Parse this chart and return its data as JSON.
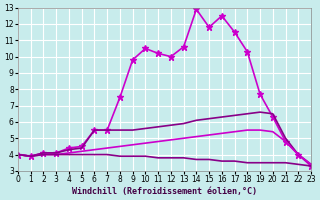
{
  "xlabel": "Windchill (Refroidissement éolien,°C)",
  "ylabel": "",
  "background_color": "#c8ecec",
  "grid_color": "#ffffff",
  "xlim": [
    0,
    23
  ],
  "ylim": [
    3,
    13
  ],
  "xticks": [
    0,
    1,
    2,
    3,
    4,
    5,
    6,
    7,
    8,
    9,
    10,
    11,
    12,
    13,
    14,
    15,
    16,
    17,
    18,
    19,
    20,
    21,
    22,
    23
  ],
  "yticks": [
    3,
    4,
    5,
    6,
    7,
    8,
    9,
    10,
    11,
    12,
    13
  ],
  "series": [
    {
      "x": [
        0,
        1,
        2,
        3,
        4,
        5,
        6,
        7,
        8,
        9,
        10,
        11,
        12,
        13,
        14,
        15,
        16,
        17,
        18,
        19,
        20,
        21,
        22,
        23
      ],
      "y": [
        4.0,
        3.9,
        4.1,
        4.1,
        4.4,
        4.5,
        5.5,
        5.5,
        7.5,
        9.8,
        10.5,
        10.2,
        10.0,
        10.6,
        12.9,
        11.8,
        12.5,
        11.5,
        10.3,
        7.7,
        6.3,
        4.8,
        4.0,
        3.3
      ],
      "marker": "*",
      "linewidth": 1.2,
      "markersize": 5,
      "color": "#cc00cc"
    },
    {
      "x": [
        0,
        1,
        2,
        3,
        4,
        5,
        6,
        7,
        8,
        9,
        10,
        11,
        12,
        13,
        14,
        15,
        16,
        17,
        18,
        19,
        20,
        21,
        22,
        23
      ],
      "y": [
        4.0,
        3.9,
        4.1,
        4.1,
        4.3,
        4.4,
        5.5,
        5.5,
        5.5,
        5.5,
        5.6,
        5.7,
        5.8,
        5.9,
        6.1,
        6.2,
        6.3,
        6.4,
        6.5,
        6.6,
        6.5,
        5.0,
        4.0,
        3.4
      ],
      "marker": null,
      "linewidth": 1.2,
      "markersize": 0,
      "color": "#880088"
    },
    {
      "x": [
        0,
        1,
        2,
        3,
        4,
        5,
        6,
        7,
        8,
        9,
        10,
        11,
        12,
        13,
        14,
        15,
        16,
        17,
        18,
        19,
        20,
        21,
        22,
        23
      ],
      "y": [
        4.0,
        3.9,
        4.0,
        4.0,
        4.1,
        4.2,
        4.3,
        4.4,
        4.5,
        4.6,
        4.7,
        4.8,
        4.9,
        5.0,
        5.1,
        5.2,
        5.3,
        5.4,
        5.5,
        5.5,
        5.4,
        4.8,
        4.0,
        3.4
      ],
      "marker": null,
      "linewidth": 1.2,
      "markersize": 0,
      "color": "#cc00cc"
    },
    {
      "x": [
        0,
        1,
        2,
        3,
        4,
        5,
        6,
        7,
        8,
        9,
        10,
        11,
        12,
        13,
        14,
        15,
        16,
        17,
        18,
        19,
        20,
        21,
        22,
        23
      ],
      "y": [
        4.0,
        3.9,
        4.0,
        4.0,
        4.0,
        4.0,
        4.0,
        4.0,
        3.9,
        3.9,
        3.9,
        3.8,
        3.8,
        3.8,
        3.7,
        3.7,
        3.6,
        3.6,
        3.5,
        3.5,
        3.5,
        3.5,
        3.4,
        3.3
      ],
      "marker": null,
      "linewidth": 1.2,
      "markersize": 0,
      "color": "#880088"
    }
  ],
  "title_fontsize": 7,
  "axis_fontsize": 6,
  "tick_fontsize": 5.5
}
